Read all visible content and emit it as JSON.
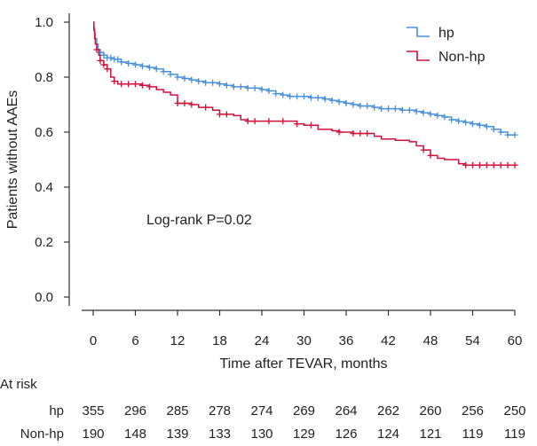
{
  "chart_data": {
    "type": "line",
    "subtype": "kaplan-meier",
    "xlabel": "Time after TEVAR, months",
    "ylabel": "Patients without AAEs",
    "xlim": [
      0,
      60
    ],
    "ylim": [
      0,
      1.0
    ],
    "x_ticks": [
      0,
      6,
      12,
      18,
      24,
      30,
      36,
      42,
      48,
      54,
      60
    ],
    "y_ticks": [
      0.0,
      0.2,
      0.4,
      0.6,
      0.8,
      1.0
    ],
    "y_tick_labels": [
      "0.0",
      "0.2",
      "0.4",
      "0.6",
      "0.8",
      "1.0"
    ],
    "annotation": "Log-rank P=0.02",
    "legend_position": "top-right",
    "series": [
      {
        "name": "hp",
        "color": "#4a90d9",
        "steps": [
          [
            0,
            1.0
          ],
          [
            0.1,
            0.98
          ],
          [
            0.2,
            0.96
          ],
          [
            0.3,
            0.94
          ],
          [
            0.5,
            0.92
          ],
          [
            0.7,
            0.9
          ],
          [
            1,
            0.89
          ],
          [
            1.5,
            0.88
          ],
          [
            2,
            0.87
          ],
          [
            3,
            0.865
          ],
          [
            4,
            0.855
          ],
          [
            5,
            0.85
          ],
          [
            6,
            0.845
          ],
          [
            7,
            0.84
          ],
          [
            8,
            0.835
          ],
          [
            9,
            0.83
          ],
          [
            10,
            0.82
          ],
          [
            11,
            0.81
          ],
          [
            12,
            0.8
          ],
          [
            13,
            0.795
          ],
          [
            14,
            0.79
          ],
          [
            15,
            0.785
          ],
          [
            16,
            0.78
          ],
          [
            17,
            0.78
          ],
          [
            18,
            0.775
          ],
          [
            19,
            0.77
          ],
          [
            20,
            0.765
          ],
          [
            21,
            0.765
          ],
          [
            22,
            0.76
          ],
          [
            23,
            0.76
          ],
          [
            24,
            0.755
          ],
          [
            25,
            0.75
          ],
          [
            26,
            0.74
          ],
          [
            27,
            0.735
          ],
          [
            28,
            0.73
          ],
          [
            30,
            0.73
          ],
          [
            31,
            0.725
          ],
          [
            33,
            0.72
          ],
          [
            34,
            0.715
          ],
          [
            35,
            0.71
          ],
          [
            36,
            0.705
          ],
          [
            37,
            0.7
          ],
          [
            38,
            0.695
          ],
          [
            40,
            0.69
          ],
          [
            41,
            0.685
          ],
          [
            42,
            0.685
          ],
          [
            44,
            0.68
          ],
          [
            46,
            0.675
          ],
          [
            47,
            0.67
          ],
          [
            48,
            0.665
          ],
          [
            49,
            0.66
          ],
          [
            50,
            0.655
          ],
          [
            51,
            0.645
          ],
          [
            52,
            0.64
          ],
          [
            53,
            0.635
          ],
          [
            54,
            0.63
          ],
          [
            55,
            0.625
          ],
          [
            56,
            0.62
          ],
          [
            57,
            0.61
          ],
          [
            58,
            0.6
          ],
          [
            59,
            0.59
          ],
          [
            60,
            0.59
          ]
        ],
        "censor_times": [
          1,
          1.5,
          2,
          2.5,
          3,
          3.5,
          4,
          5,
          6,
          7,
          8,
          9,
          10,
          11,
          12,
          13,
          14,
          15,
          16,
          17,
          18,
          19,
          20,
          21,
          22,
          23,
          24,
          25,
          26,
          27,
          28,
          29,
          30,
          31,
          32,
          33,
          34,
          35,
          36,
          37,
          38,
          39,
          40,
          41,
          42,
          43,
          44,
          45,
          46,
          47,
          48,
          49,
          50,
          51,
          52,
          53,
          54,
          55,
          56,
          57,
          58,
          59,
          60
        ]
      },
      {
        "name": "Non-hp",
        "color": "#d0103a",
        "steps": [
          [
            0,
            1.0
          ],
          [
            0.1,
            0.97
          ],
          [
            0.2,
            0.94
          ],
          [
            0.3,
            0.92
          ],
          [
            0.5,
            0.9
          ],
          [
            0.8,
            0.88
          ],
          [
            1,
            0.86
          ],
          [
            1.5,
            0.845
          ],
          [
            2,
            0.83
          ],
          [
            2.5,
            0.8
          ],
          [
            3,
            0.785
          ],
          [
            3.5,
            0.775
          ],
          [
            7,
            0.77
          ],
          [
            8,
            0.765
          ],
          [
            9,
            0.755
          ],
          [
            10,
            0.745
          ],
          [
            11,
            0.735
          ],
          [
            12,
            0.705
          ],
          [
            14,
            0.7
          ],
          [
            15,
            0.69
          ],
          [
            17,
            0.68
          ],
          [
            18,
            0.665
          ],
          [
            20,
            0.66
          ],
          [
            21,
            0.645
          ],
          [
            22,
            0.64
          ],
          [
            29,
            0.63
          ],
          [
            30,
            0.625
          ],
          [
            32,
            0.61
          ],
          [
            34,
            0.605
          ],
          [
            35,
            0.6
          ],
          [
            37,
            0.595
          ],
          [
            40,
            0.585
          ],
          [
            41,
            0.575
          ],
          [
            43,
            0.57
          ],
          [
            45,
            0.565
          ],
          [
            46,
            0.55
          ],
          [
            47,
            0.535
          ],
          [
            48,
            0.515
          ],
          [
            49,
            0.505
          ],
          [
            50,
            0.5
          ],
          [
            52,
            0.485
          ],
          [
            53,
            0.48
          ],
          [
            60,
            0.48
          ]
        ],
        "censor_times": [
          0.5,
          1,
          1.5,
          2,
          3,
          4,
          5,
          6,
          7,
          8,
          12,
          13,
          14,
          16,
          18,
          19,
          22,
          23,
          25,
          27,
          29,
          31,
          35,
          37,
          38,
          39,
          47,
          48,
          53,
          54,
          55,
          56,
          57,
          58,
          59,
          60
        ]
      }
    ]
  },
  "risk_table": {
    "title": "At risk",
    "rows": [
      {
        "label": "hp",
        "values": [
          "355",
          "296",
          "285",
          "278",
          "274",
          "269",
          "264",
          "262",
          "260",
          "256",
          "250"
        ]
      },
      {
        "label": "Non-hp",
        "values": [
          "190",
          "148",
          "139",
          "133",
          "130",
          "129",
          "126",
          "124",
          "121",
          "119",
          "119"
        ]
      }
    ]
  }
}
